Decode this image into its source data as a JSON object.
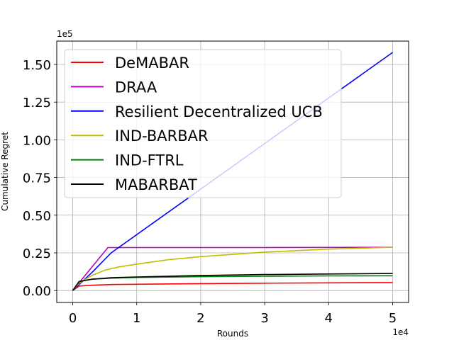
{
  "chart_data": {
    "type": "line",
    "xlabel": "Rounds",
    "ylabel": "Cumulative Regret",
    "x_offset_label": "1e4",
    "y_offset_label": "1e5",
    "xlim": [
      -0.25,
      5.25
    ],
    "ylim": [
      -0.079,
      1.655
    ],
    "x_ticks": [
      0,
      1,
      2,
      3,
      4,
      5
    ],
    "x_tick_labels": [
      "0",
      "1",
      "2",
      "3",
      "4",
      "5"
    ],
    "y_ticks": [
      0.0,
      0.25,
      0.5,
      0.75,
      1.0,
      1.25,
      1.5
    ],
    "y_tick_labels": [
      "0.00",
      "0.25",
      "0.50",
      "0.75",
      "1.00",
      "1.25",
      "1.50"
    ],
    "grid": true,
    "legend_position": "upper-left",
    "series": [
      {
        "name": "DeMABAR",
        "color": "#ff0000",
        "x": [
          0,
          0.1,
          0.3,
          0.6,
          1,
          2,
          3,
          4,
          5
        ],
        "y": [
          0,
          0.03,
          0.035,
          0.04,
          0.042,
          0.046,
          0.049,
          0.051,
          0.053
        ]
      },
      {
        "name": "DRAA",
        "color": "#bf00bf",
        "x": [
          0,
          0.55,
          1,
          2,
          3,
          4,
          5
        ],
        "y": [
          0,
          0.285,
          0.285,
          0.285,
          0.285,
          0.286,
          0.287
        ]
      },
      {
        "name": "Resilient Decentralized UCB",
        "color": "#0000ff",
        "x": [
          0,
          0.3,
          0.6,
          5
        ],
        "y": [
          0,
          0.12,
          0.25,
          1.58
        ]
      },
      {
        "name": "IND-BARBAR",
        "color": "#bfbf00",
        "x": [
          0,
          0.1,
          0.3,
          0.5,
          0.7,
          1,
          1.5,
          2,
          3,
          4,
          5
        ],
        "y": [
          0,
          0.05,
          0.1,
          0.135,
          0.155,
          0.175,
          0.205,
          0.225,
          0.255,
          0.275,
          0.287
        ]
      },
      {
        "name": "IND-FTRL",
        "color": "#008000",
        "x": [
          0,
          0.1,
          0.3,
          0.6,
          1,
          2,
          3,
          4,
          5
        ],
        "y": [
          0,
          0.06,
          0.075,
          0.082,
          0.087,
          0.092,
          0.095,
          0.097,
          0.098
        ]
      },
      {
        "name": "MABARBAT",
        "color": "#000000",
        "x": [
          0,
          0.1,
          0.3,
          0.6,
          1,
          2,
          3,
          4,
          5
        ],
        "y": [
          0,
          0.06,
          0.075,
          0.085,
          0.09,
          0.1,
          0.106,
          0.11,
          0.113
        ]
      }
    ]
  }
}
